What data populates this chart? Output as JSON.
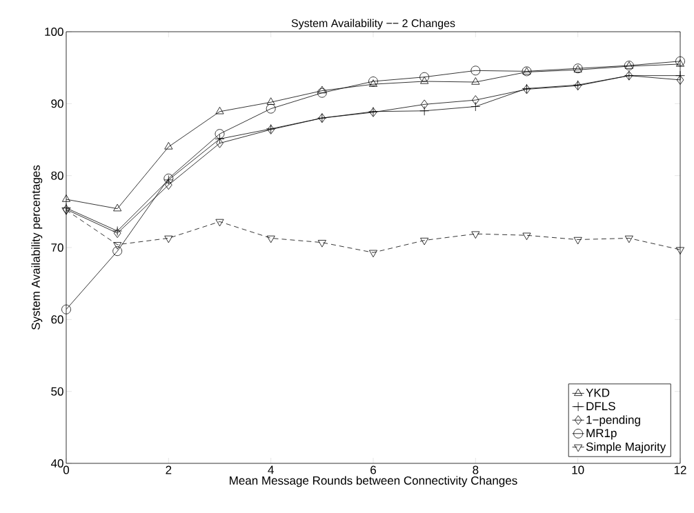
{
  "chart_data": {
    "type": "line",
    "title": "System Availability −− 2 Changes",
    "xlabel": "Mean Message Rounds between Connectivity Changes",
    "ylabel": "System Availability percentages",
    "x": [
      0,
      1,
      2,
      3,
      4,
      5,
      6,
      7,
      8,
      9,
      10,
      11,
      12
    ],
    "series": [
      {
        "name": "YKD",
        "color": "#000000",
        "marker": "triangle",
        "line_style": "solid",
        "values": [
          76.7,
          75.4,
          84.0,
          88.9,
          90.2,
          91.8,
          92.7,
          93.1,
          93.0,
          94.4,
          94.7,
          95.2,
          95.5
        ]
      },
      {
        "name": "DFLS",
        "color": "#000000",
        "marker": "cross",
        "line_style": "solid",
        "values": [
          75.5,
          72.3,
          79.4,
          85.1,
          86.5,
          88.0,
          88.9,
          89.0,
          89.6,
          92.1,
          92.6,
          93.9,
          93.9
        ]
      },
      {
        "name": "1−pending",
        "color": "#000000",
        "marker": "diamond",
        "line_style": "solid",
        "values": [
          75.3,
          72.0,
          78.7,
          84.5,
          86.4,
          88.0,
          88.8,
          89.9,
          90.5,
          92.0,
          92.5,
          93.9,
          93.3
        ]
      },
      {
        "name": "MR1p",
        "color": "#000000",
        "marker": "circle",
        "line_style": "solid",
        "values": [
          61.4,
          69.5,
          79.6,
          85.8,
          89.3,
          91.5,
          93.1,
          93.7,
          94.6,
          94.5,
          94.9,
          95.3,
          95.9
        ]
      },
      {
        "name": "Simple Majority",
        "color": "#000000",
        "marker": "triangle down",
        "line_style": "dashed",
        "values": [
          75.2,
          70.4,
          71.3,
          73.6,
          71.3,
          70.7,
          69.3,
          71.0,
          71.9,
          71.7,
          71.1,
          71.3,
          69.7
        ]
      }
    ],
    "xlim": [
      0,
      12
    ],
    "xticks": [
      0,
      2,
      4,
      6,
      8,
      10,
      12
    ],
    "ylim": [
      40,
      100
    ],
    "yticks": [
      40,
      50,
      60,
      70,
      80,
      90,
      100
    ],
    "grid": false,
    "legend": "bottom right"
  }
}
